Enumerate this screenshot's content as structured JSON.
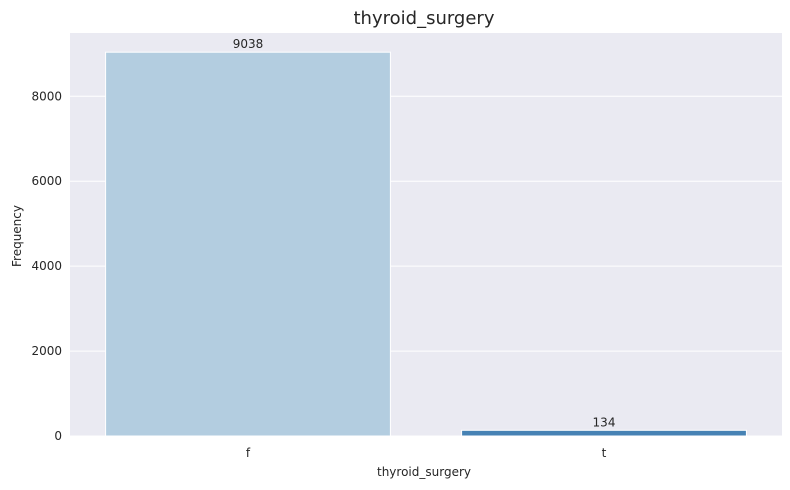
{
  "chart_data": {
    "type": "bar",
    "title": "thyroid_surgery",
    "xlabel": "thyroid_surgery",
    "ylabel": "Frequency",
    "categories": [
      "f",
      "t"
    ],
    "values": [
      9038,
      134
    ],
    "colors": [
      "#b3cde0",
      "#4682b4"
    ],
    "ylim": [
      0,
      9490
    ],
    "yticks": [
      0,
      2000,
      4000,
      6000,
      8000
    ],
    "grid": true,
    "background": "#eaeaf2"
  }
}
